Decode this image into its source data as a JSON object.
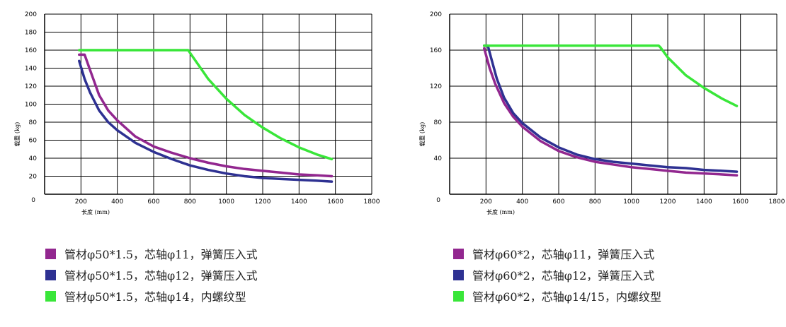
{
  "chart_data": [
    {
      "type": "line",
      "title": "",
      "xlabel": "长度 (mm)",
      "ylabel": "载重 (kg)",
      "xlim": [
        0,
        1800
      ],
      "ylim": [
        0,
        200
      ],
      "xticks": [
        0,
        200,
        400,
        600,
        800,
        1000,
        1200,
        1400,
        1600,
        1800
      ],
      "yticks": [
        20,
        40,
        60,
        80,
        100,
        120,
        140,
        160,
        180,
        200
      ],
      "grid": true,
      "legend_placement": "bottom",
      "series": [
        {
          "name": "管材φ50*1.5，芯轴φ11，弹簧压入式",
          "color": "#92278f",
          "x": [
            190,
            220,
            250,
            300,
            350,
            400,
            500,
            600,
            700,
            800,
            900,
            1000,
            1100,
            1200,
            1300,
            1400,
            1500,
            1580
          ],
          "y": [
            155,
            155,
            138,
            110,
            93,
            82,
            64,
            53,
            46,
            40,
            35,
            31,
            28,
            26,
            24,
            22,
            21,
            20
          ]
        },
        {
          "name": "管材φ50*1.5，芯轴φ12，弹簧压入式",
          "color": "#2e3192",
          "x": [
            190,
            220,
            250,
            300,
            350,
            400,
            500,
            600,
            700,
            800,
            900,
            1000,
            1100,
            1200,
            1300,
            1400,
            1500,
            1580
          ],
          "y": [
            148,
            128,
            113,
            93,
            80,
            71,
            57,
            47,
            39,
            32,
            27,
            23,
            20,
            18,
            17,
            16,
            15,
            14
          ]
        },
        {
          "name": "管材φ50*1.5，芯轴φ14，内螺纹型",
          "color": "#39e639",
          "x": [
            190,
            400,
            600,
            790,
            800,
            900,
            1000,
            1100,
            1200,
            1300,
            1400,
            1500,
            1580
          ],
          "y": [
            160,
            160,
            160,
            160,
            157,
            128,
            106,
            88,
            74,
            62,
            52,
            44,
            39
          ]
        }
      ]
    },
    {
      "type": "line",
      "title": "",
      "xlabel": "长度 (mm)",
      "ylabel": "载重 (kg)",
      "xlim": [
        0,
        1800
      ],
      "ylim": [
        0,
        200
      ],
      "xticks": [
        0,
        200,
        400,
        600,
        800,
        1000,
        1200,
        1400,
        1600,
        1800
      ],
      "yticks": [
        40,
        80,
        120,
        160,
        200
      ],
      "grid": true,
      "legend_placement": "bottom",
      "series": [
        {
          "name": "管材φ60*2，芯轴φ11，弹簧压入式",
          "color": "#92278f",
          "x": [
            190,
            220,
            250,
            300,
            350,
            400,
            500,
            600,
            700,
            800,
            900,
            1000,
            1100,
            1200,
            1300,
            1400,
            1500,
            1580
          ],
          "y": [
            162,
            140,
            123,
            101,
            86,
            75,
            59,
            48,
            41,
            36,
            33,
            30,
            28,
            26,
            24,
            23,
            22,
            21
          ]
        },
        {
          "name": "管材φ60*2，芯轴φ12，弹簧压入式",
          "color": "#2e3192",
          "x": [
            190,
            210,
            230,
            260,
            300,
            350,
            400,
            500,
            600,
            700,
            800,
            900,
            1000,
            1100,
            1200,
            1300,
            1400,
            1500,
            1580
          ],
          "y": [
            165,
            165,
            150,
            128,
            107,
            90,
            79,
            63,
            52,
            44,
            39,
            36,
            34,
            32,
            30,
            29,
            27,
            26,
            25
          ]
        },
        {
          "name": "管材φ60*2，芯轴φ14/15，内螺纹型",
          "color": "#39e639",
          "x": [
            190,
            400,
            600,
            800,
            1000,
            1150,
            1160,
            1200,
            1300,
            1400,
            1500,
            1580
          ],
          "y": [
            165,
            165,
            165,
            165,
            165,
            165,
            163,
            152,
            132,
            118,
            106,
            98
          ]
        }
      ]
    }
  ]
}
